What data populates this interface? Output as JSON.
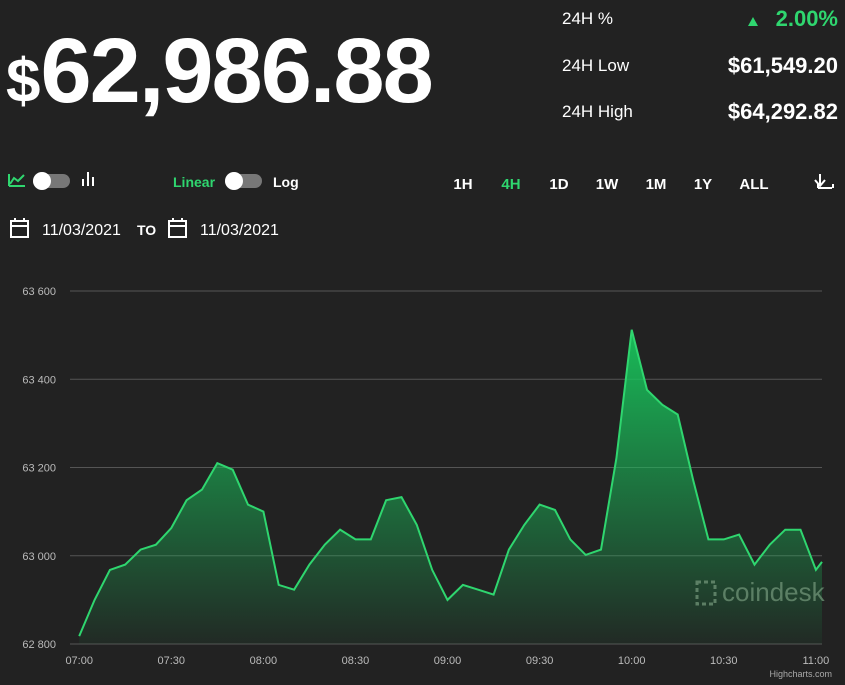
{
  "header": {
    "currency": "$",
    "price": "62,986.88",
    "stats": [
      {
        "label": "24H %",
        "value": "2.00%"
      },
      {
        "label": "24H Low",
        "value": "$61,549.20"
      },
      {
        "label": "24H High",
        "value": "$64,292.82"
      }
    ]
  },
  "controls": {
    "scale_linear": "Linear",
    "scale_log": "Log",
    "ranges": [
      "1H",
      "4H",
      "1D",
      "1W",
      "1M",
      "1Y",
      "ALL"
    ],
    "active_range": "4H",
    "date_from": "11/03/2021",
    "date_sep": "TO",
    "date_to": "11/03/2021"
  },
  "watermark": "coindesk",
  "credit": "Highcharts.com",
  "chart_data": {
    "type": "area",
    "x": [
      "07:00",
      "07:05",
      "07:10",
      "07:15",
      "07:20",
      "07:25",
      "07:30",
      "07:35",
      "07:40",
      "07:45",
      "07:50",
      "07:55",
      "08:00",
      "08:05",
      "08:10",
      "08:15",
      "08:20",
      "08:25",
      "08:30",
      "08:35",
      "08:40",
      "08:45",
      "08:50",
      "08:55",
      "09:00",
      "09:05",
      "09:10",
      "09:15",
      "09:20",
      "09:25",
      "09:30",
      "09:35",
      "09:40",
      "09:45",
      "09:50",
      "09:55",
      "10:00",
      "10:05",
      "10:10",
      "10:15",
      "10:20",
      "10:25",
      "10:30",
      "10:35",
      "10:40",
      "10:45",
      "10:50",
      "10:55",
      "11:00",
      "11:02"
    ],
    "values": [
      62818,
      62900,
      62968,
      62980,
      63014,
      63025,
      63063,
      63126,
      63150,
      63210,
      63195,
      63116,
      63100,
      62934,
      62923,
      62980,
      63025,
      63059,
      63037,
      63037,
      63126,
      63133,
      63070,
      62968,
      62900,
      62934,
      62923,
      62912,
      63014,
      63070,
      63116,
      63104,
      63037,
      63002,
      63014,
      63221,
      63512,
      63376,
      63342,
      63320,
      63172,
      63037,
      63037,
      63048,
      62980,
      63025,
      63059,
      63059,
      62968,
      62986
    ],
    "color": "#2fd66f",
    "xlim": [
      "06:57",
      "11:02"
    ],
    "xticks": [
      "07:00",
      "07:30",
      "08:00",
      "08:30",
      "09:00",
      "09:30",
      "10:00",
      "10:30",
      "11:00"
    ],
    "ylim": [
      62800,
      63600
    ],
    "yticks": [
      {
        "value": 62800,
        "label": "62 800"
      },
      {
        "value": 63000,
        "label": "63 000"
      },
      {
        "value": 63200,
        "label": "63 200"
      },
      {
        "value": 63400,
        "label": "63 400"
      },
      {
        "value": 63600,
        "label": "63 600"
      }
    ],
    "grid": true
  }
}
